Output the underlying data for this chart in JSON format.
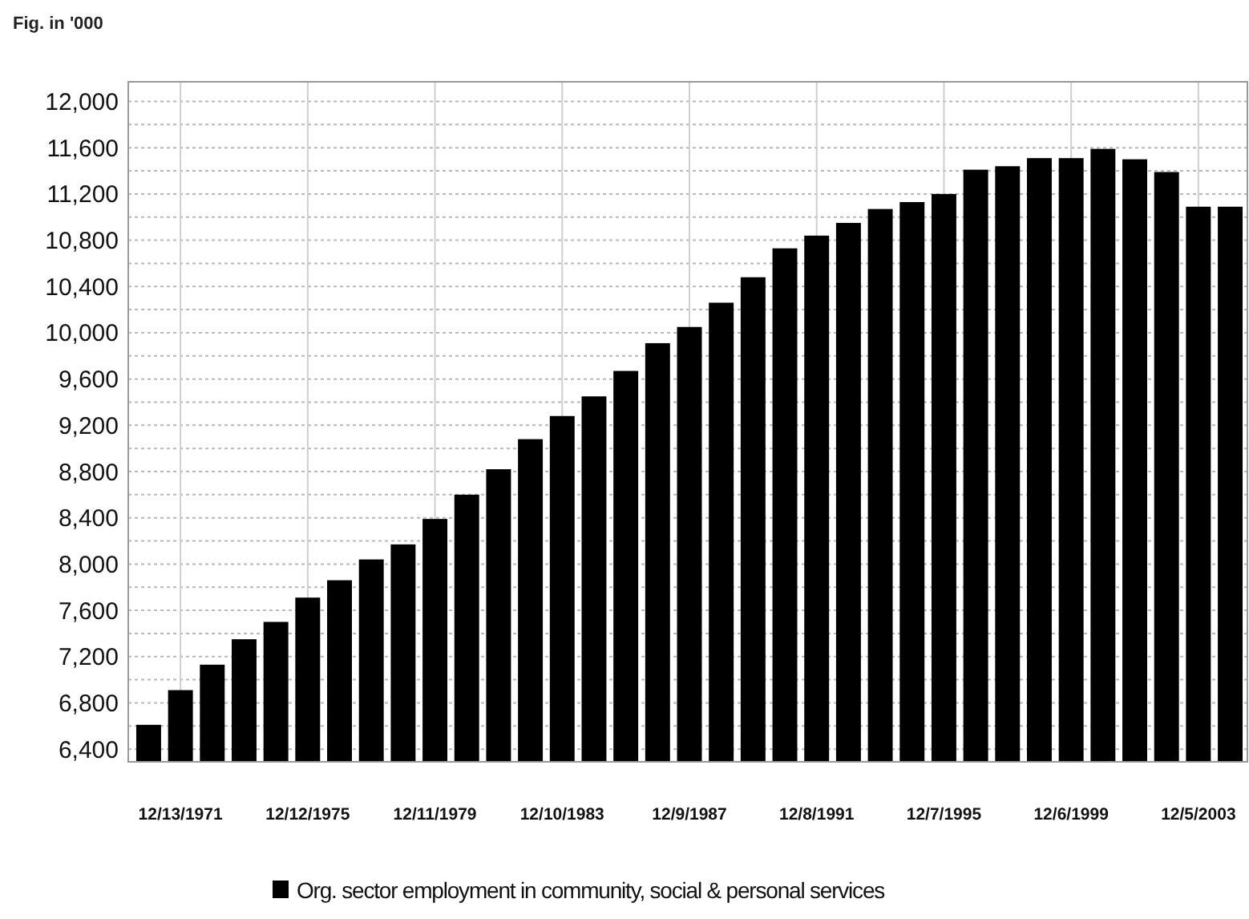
{
  "chart_data": {
    "type": "bar",
    "ylabel": "Fig. in '000",
    "categories": [
      null,
      "12/13/1971",
      null,
      null,
      null,
      "12/12/1975",
      null,
      null,
      null,
      "12/11/1979",
      null,
      null,
      null,
      "12/10/1983",
      null,
      null,
      null,
      "12/9/1987",
      null,
      null,
      null,
      "12/8/1991",
      null,
      null,
      null,
      "12/7/1995",
      null,
      null,
      null,
      "12/6/1999",
      null,
      null,
      null,
      "12/5/2003",
      null
    ],
    "series": [
      {
        "name": "Org. sector employment in community, social & personal services",
        "color": "#000000",
        "values": [
          6610,
          6910,
          7130,
          7350,
          7500,
          7710,
          7860,
          8040,
          8170,
          8390,
          8600,
          8820,
          9080,
          9280,
          9450,
          9670,
          9910,
          10050,
          10260,
          10480,
          10730,
          10840,
          10950,
          11070,
          11130,
          11200,
          11410,
          11440,
          11510,
          11510,
          11590,
          11500,
          11390,
          11090,
          11090
        ]
      }
    ],
    "ylim": [
      6290,
      12170
    ],
    "yticks": [
      {
        "value": 6400,
        "label": "6,400"
      },
      {
        "value": 6600,
        "label": null
      },
      {
        "value": 6800,
        "label": "6,800"
      },
      {
        "value": 7000,
        "label": null
      },
      {
        "value": 7200,
        "label": "7,200"
      },
      {
        "value": 7400,
        "label": null
      },
      {
        "value": 7600,
        "label": "7,600"
      },
      {
        "value": 7800,
        "label": null
      },
      {
        "value": 8000,
        "label": "8,000"
      },
      {
        "value": 8200,
        "label": null
      },
      {
        "value": 8400,
        "label": "8,400"
      },
      {
        "value": 8600,
        "label": null
      },
      {
        "value": 8800,
        "label": "8,800"
      },
      {
        "value": 9000,
        "label": null
      },
      {
        "value": 9200,
        "label": "9,200"
      },
      {
        "value": 9400,
        "label": null
      },
      {
        "value": 9600,
        "label": "9,600"
      },
      {
        "value": 9800,
        "label": null
      },
      {
        "value": 10000,
        "label": "10,000"
      },
      {
        "value": 10200,
        "label": null
      },
      {
        "value": 10400,
        "label": "10,400"
      },
      {
        "value": 10600,
        "label": null
      },
      {
        "value": 10800,
        "label": "10,800"
      },
      {
        "value": 11000,
        "label": null
      },
      {
        "value": 11200,
        "label": "11,200"
      },
      {
        "value": 11400,
        "label": null
      },
      {
        "value": 11600,
        "label": "11,600"
      },
      {
        "value": 11800,
        "label": null
      },
      {
        "value": 12000,
        "label": "12,000"
      }
    ],
    "grid": true,
    "legend": "bottom"
  }
}
